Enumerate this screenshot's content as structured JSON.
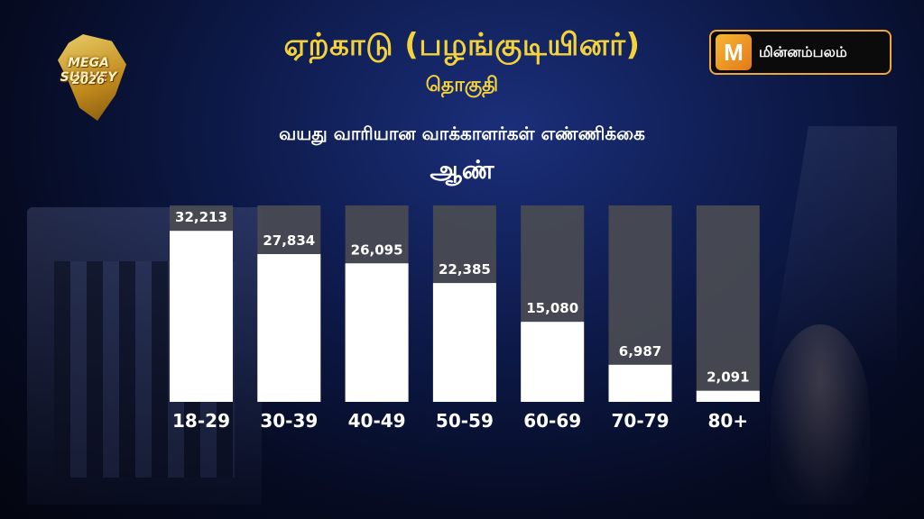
{
  "header": {
    "title": "ஏற்காடு (பழங்குடியினர்)",
    "subtitle": "தொகுதி",
    "caption": "வயது வாரியான வாக்காளர்கள் எண்ணிக்கை",
    "gender": "ஆண்"
  },
  "logo_left": {
    "line1": "MEGA SURVEY",
    "line2": "2026"
  },
  "brand": {
    "icon_letter": "M",
    "name": "மின்னம்பலம்",
    "accent": "#f0a73a"
  },
  "colors": {
    "title": "#f4d23a",
    "bar": "#ffffff",
    "bar_background": "#4a4c52"
  },
  "chart_data": {
    "type": "bar",
    "categories": [
      "18-29",
      "30-39",
      "40-49",
      "50-59",
      "60-69",
      "70-79",
      "80+"
    ],
    "values": [
      32213,
      27834,
      26095,
      22385,
      15080,
      6987,
      2091
    ],
    "value_labels": [
      "32,213",
      "27,834",
      "26,095",
      "22,385",
      "15,080",
      "6,987",
      "2,091"
    ],
    "ylim": [
      0,
      37000
    ],
    "grid": false,
    "legend": "none"
  }
}
